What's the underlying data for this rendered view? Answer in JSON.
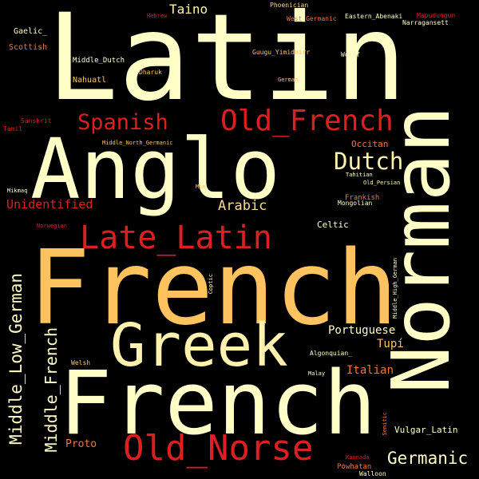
{
  "words": [
    {
      "key": "latin",
      "text": "Latin",
      "color": "#FFFEC6"
    },
    {
      "key": "anglo",
      "text": "Anglo",
      "color": "#FFFEC6"
    },
    {
      "key": "norman",
      "text": "Norman",
      "color": "#FFFEC6"
    },
    {
      "key": "french1",
      "text": "French",
      "color": "#FEC35F"
    },
    {
      "key": "french2",
      "text": "French",
      "color": "#FFFEC6"
    },
    {
      "key": "greek",
      "text": "Greek",
      "color": "#FFF2AF"
    },
    {
      "key": "old_french",
      "text": "Old_French",
      "color": "#DE1F21"
    },
    {
      "key": "late_latin",
      "text": "Late_Latin",
      "color": "#DE1F21"
    },
    {
      "key": "old_norse",
      "text": "Old_Norse",
      "color": "#DE1F21"
    },
    {
      "key": "spanish",
      "text": "Spanish",
      "color": "#DE1F21"
    },
    {
      "key": "dutch",
      "text": "Dutch",
      "color": "#FFF2AF"
    },
    {
      "key": "germanic",
      "text": "Germanic",
      "color": "#FFFEC6"
    },
    {
      "key": "middle_low_german",
      "text": "Middle_Low_German",
      "color": "#FFFEC6"
    },
    {
      "key": "middle_french",
      "text": "Middle_French",
      "color": "#FFFEC6"
    },
    {
      "key": "taino",
      "text": "Taino",
      "color": "#FFF2AF"
    },
    {
      "key": "unidentified",
      "text": "Unidentified",
      "color": "#DE1F21"
    },
    {
      "key": "arabic",
      "text": "Arabic",
      "color": "#FEDB8D"
    },
    {
      "key": "occitan",
      "text": "Occitan",
      "color": "#F6743A"
    },
    {
      "key": "portuguese",
      "text": "Portuguese",
      "color": "#FFFEC6"
    },
    {
      "key": "tupi",
      "text": "Tupí",
      "color": "#FEC35F"
    },
    {
      "key": "italian",
      "text": "Italian",
      "color": "#F6743A"
    },
    {
      "key": "proto",
      "text": "Proto",
      "color": "#F6743A"
    },
    {
      "key": "vulgar_latin",
      "text": "Vulgar_Latin",
      "color": "#FFFEC6"
    },
    {
      "key": "celtic",
      "text": "Celtic",
      "color": "#FFFEC6"
    },
    {
      "key": "gaelic",
      "text": "Gaelic_",
      "color": "#FFFEC6"
    },
    {
      "key": "scottish",
      "text": "Scottish",
      "color": "#F6743A"
    },
    {
      "key": "middle_dutch",
      "text": "Middle_Dutch",
      "color": "#FFFEC6"
    },
    {
      "key": "nahuatl",
      "text": "Nahuatl",
      "color": "#FEC35F"
    },
    {
      "key": "dharuk",
      "text": "Dharuk",
      "color": "#FEC35F"
    },
    {
      "key": "guugu",
      "text": "Guugu_Yimidhirr",
      "color": "#FEC35F"
    },
    {
      "key": "wolof",
      "text": "Wolof",
      "color": "#FFF2AF"
    },
    {
      "key": "german",
      "text": "German",
      "color": "#FEC35F"
    },
    {
      "key": "hebrew",
      "text": "Hebrew",
      "color": "#DE1F21"
    },
    {
      "key": "phoenician",
      "text": "Phoenician",
      "color": "#FEDB8D"
    },
    {
      "key": "west_germanic",
      "text": "West_Germanic",
      "color": "#F6743A"
    },
    {
      "key": "eastern_abenaki",
      "text": "Eastern_Abenaki",
      "color": "#FFFEC6"
    },
    {
      "key": "mapudungun",
      "text": "Mapudungun",
      "color": "#DE1F21"
    },
    {
      "key": "narragansett",
      "text": "Narragansett",
      "color": "#FFFEC6"
    },
    {
      "key": "sanskrit",
      "text": "Sanskrit",
      "color": "#DE1F21"
    },
    {
      "key": "tamil",
      "text": "Tamil",
      "color": "#DE1F21"
    },
    {
      "key": "middle_north_germanic",
      "text": "Middle_North_Germanic",
      "color": "#FEC35F"
    },
    {
      "key": "mikmaq",
      "text": "Mikmaq",
      "color": "#FFFEC6"
    },
    {
      "key": "min",
      "text": "Min",
      "color": "#FEC35F"
    },
    {
      "key": "tahitian",
      "text": "Tahitian",
      "color": "#FFFEC6"
    },
    {
      "key": "old_persian",
      "text": "Old_Persian",
      "color": "#FFF2AF"
    },
    {
      "key": "frankish",
      "text": "Frankish",
      "color": "#F6743A"
    },
    {
      "key": "mongolian",
      "text": "Mongolian",
      "color": "#FFFEC6"
    },
    {
      "key": "norwegian",
      "text": "Norwegian",
      "color": "#DE1F21"
    },
    {
      "key": "coptic",
      "text": "Coptic",
      "color": "#FFFEC6"
    },
    {
      "key": "middle_high_german",
      "text": "Middle_High_German",
      "color": "#FFFEC6"
    },
    {
      "key": "algonquian",
      "text": "Algonquian_",
      "color": "#FFFEC6"
    },
    {
      "key": "welsh",
      "text": "Welsh",
      "color": "#FEC35F"
    },
    {
      "key": "malay",
      "text": "Malay",
      "color": "#FFFEC6"
    },
    {
      "key": "semitic",
      "text": "Semitic",
      "color": "#F6743A"
    },
    {
      "key": "kannada",
      "text": "Kannada",
      "color": "#DE1F21"
    },
    {
      "key": "powhatan",
      "text": "Powhatan",
      "color": "#F6743A"
    },
    {
      "key": "walloon",
      "text": "Walloon",
      "color": "#FFFEC6"
    }
  ]
}
